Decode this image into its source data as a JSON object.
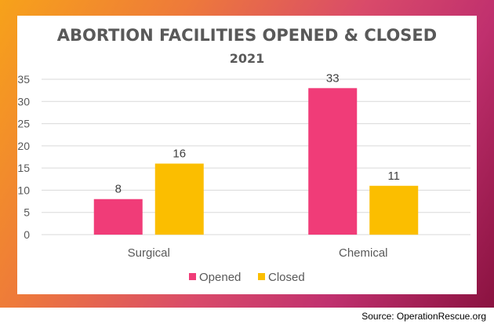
{
  "chart_data": {
    "type": "bar",
    "title": "ABORTION FACILITIES OPENED & CLOSED",
    "subtitle": "2021",
    "categories": [
      "Surgical",
      "Chemical"
    ],
    "series": [
      {
        "name": "Opened",
        "color": "#f03c78",
        "values": [
          8,
          33
        ]
      },
      {
        "name": "Closed",
        "color": "#fbbe00",
        "values": [
          16,
          11
        ]
      }
    ],
    "xlabel": "",
    "ylabel": "",
    "ylim": [
      0,
      35
    ],
    "yticks": [
      0,
      5,
      10,
      15,
      20,
      25,
      30,
      35
    ],
    "grid": true,
    "legend": "bottom"
  },
  "source": "Source: OperationRescue.org"
}
